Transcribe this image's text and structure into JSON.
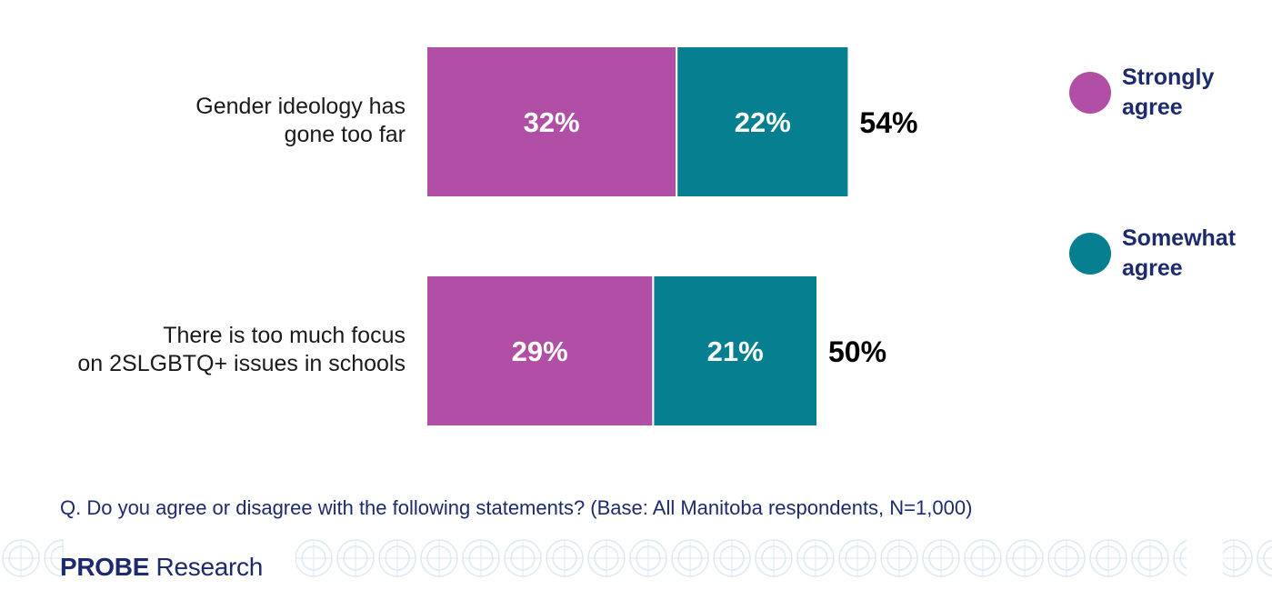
{
  "chart_data": {
    "type": "bar",
    "orientation": "horizontal",
    "stacked": true,
    "categories": [
      [
        "Gender ideology has",
        "gone too far"
      ],
      [
        "There is too much focus",
        "on 2SLGBTQ+ issues in schools"
      ]
    ],
    "series": [
      {
        "name": "Strongly agree",
        "values": [
          32,
          29
        ],
        "labels": [
          "32%",
          "29%"
        ],
        "color": "#b04fa5"
      },
      {
        "name": "Somewhat agree",
        "values": [
          22,
          21
        ],
        "labels": [
          "22%",
          "21%"
        ],
        "color": "#068090"
      }
    ],
    "totals": [
      54,
      50
    ],
    "total_labels": [
      "54%",
      "50%"
    ],
    "legend_position": "right",
    "grid": false
  },
  "legend": [
    {
      "line1": "Strongly",
      "line2": "agree",
      "color": "#b04fa5"
    },
    {
      "line1": "Somewhat",
      "line2": "agree",
      "color": "#068090"
    }
  ],
  "footnote": "Q. Do you agree or disagree with the following statements? (Base: All Manitoba respondents, N=1,000)",
  "brand": {
    "probe": "PROBE",
    "research": " Research"
  }
}
